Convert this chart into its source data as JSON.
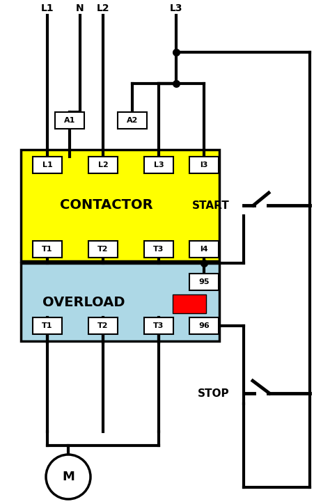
{
  "bg_color": "#ffffff",
  "contactor_color": "#FFFF00",
  "overload_color": "#ADD8E6",
  "line_color": "#000000",
  "line_width": 3.0,
  "contactor_label": "CONTACTOR",
  "overload_label": "OVERLOAD",
  "start_label": "START",
  "stop_label": "STOP",
  "motor_label": "M",
  "top_labels": [
    "L1",
    "N",
    "L2",
    "L3"
  ],
  "cont_top_labels": [
    "L1",
    "L2",
    "L3",
    "l3"
  ],
  "cont_bot_labels": [
    "T1",
    "T2",
    "T3",
    "l4"
  ],
  "over_top_labels": [
    "95"
  ],
  "over_bot_labels": [
    "T1",
    "T2",
    "T3",
    "96"
  ],
  "a_labels": [
    "A1",
    "A2"
  ]
}
